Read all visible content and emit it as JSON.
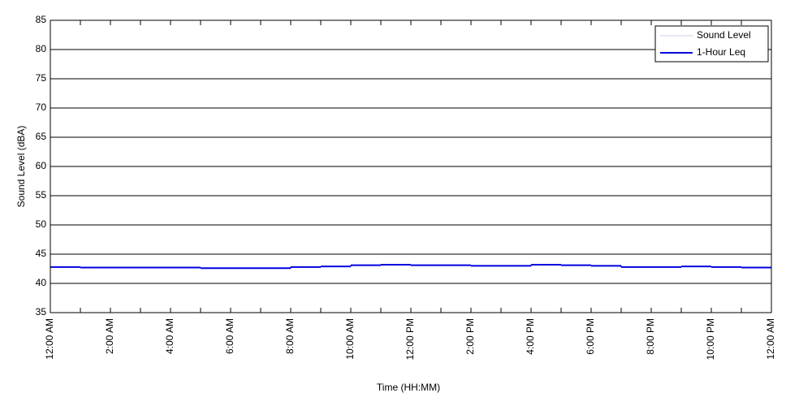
{
  "chart_data": {
    "type": "step-line",
    "xlabel": "Time (HH:MM)",
    "ylabel": "Sound Level (dBA)",
    "x": [
      0,
      1,
      2,
      3,
      4,
      5,
      6,
      7,
      8,
      9,
      10,
      11,
      12,
      13,
      14,
      15,
      16,
      17,
      18,
      19,
      20,
      21,
      22,
      23
    ],
    "series": [
      {
        "name": "Sound Level",
        "color": "#c8d0e0",
        "width": 1,
        "values": [
          42.8,
          42.7,
          42.7,
          42.7,
          42.7,
          42.6,
          42.6,
          42.6,
          42.8,
          42.9,
          43.1,
          43.2,
          43.1,
          43.1,
          43.0,
          43.0,
          43.2,
          43.1,
          43.0,
          42.8,
          42.8,
          42.9,
          42.8,
          42.7
        ]
      },
      {
        "name": "1-Hour Leq",
        "color": "#0000e0",
        "width": 2,
        "values": [
          42.8,
          42.7,
          42.7,
          42.7,
          42.7,
          42.6,
          42.6,
          42.6,
          42.8,
          42.9,
          43.1,
          43.2,
          43.1,
          43.1,
          43.0,
          43.0,
          43.2,
          43.1,
          43.0,
          42.8,
          42.8,
          42.9,
          42.8,
          42.7
        ]
      }
    ],
    "xlim": [
      0,
      24
    ],
    "xticks": [
      {
        "value": 0,
        "label": "12:00 AM"
      },
      {
        "value": 2,
        "label": "2:00 AM"
      },
      {
        "value": 4,
        "label": "4:00 AM"
      },
      {
        "value": 6,
        "label": "6:00 AM"
      },
      {
        "value": 8,
        "label": "8:00 AM"
      },
      {
        "value": 10,
        "label": "10:00 AM"
      },
      {
        "value": 12,
        "label": "12:00 PM"
      },
      {
        "value": 14,
        "label": "2:00 PM"
      },
      {
        "value": 16,
        "label": "4:00 PM"
      },
      {
        "value": 18,
        "label": "6:00 PM"
      },
      {
        "value": 20,
        "label": "8:00 PM"
      },
      {
        "value": 22,
        "label": "10:00 PM"
      },
      {
        "value": 24,
        "label": "12:00 AM"
      }
    ],
    "ylim": [
      35,
      85
    ],
    "yticks": [
      35,
      40,
      45,
      50,
      55,
      60,
      65,
      70,
      75,
      80,
      85
    ],
    "grid": true,
    "legend": "upper-right"
  }
}
